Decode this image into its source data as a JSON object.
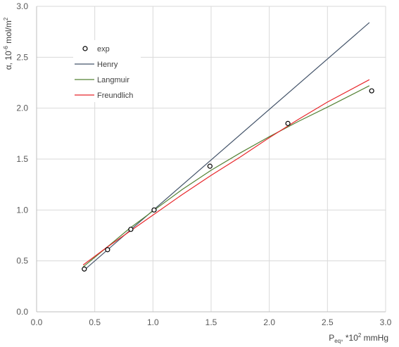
{
  "chart_data": {
    "type": "scatter",
    "xlim": [
      0.0,
      3.0
    ],
    "ylim": [
      0.0,
      3.0
    ],
    "x_ticks": [
      "0.0",
      "0.5",
      "1.0",
      "1.5",
      "2.0",
      "2.5",
      "3.0"
    ],
    "y_ticks": [
      "0.0",
      "0.5",
      "1.0",
      "1.5",
      "2.0",
      "2.5",
      "3.0"
    ],
    "x_tick_values": [
      0.0,
      0.5,
      1.0,
      1.5,
      2.0,
      2.5,
      3.0
    ],
    "y_tick_values": [
      0.0,
      0.5,
      1.0,
      1.5,
      2.0,
      2.5,
      3.0
    ],
    "xlabel": {
      "main": "P",
      "sub": "eq",
      "rest": ", *10",
      "sup": "2",
      "unit": " mmHg"
    },
    "ylabel": {
      "main": "α, 10",
      "sup": "-6",
      "mid": " mol/m",
      "sup2": "2"
    },
    "grid": true,
    "legend_position": "top-left",
    "series": [
      {
        "name": "exp",
        "kind": "markers",
        "color": "#000000",
        "x": [
          0.41,
          0.61,
          0.81,
          1.01,
          1.49,
          2.16,
          2.88
        ],
        "y": [
          0.42,
          0.61,
          0.81,
          1.0,
          1.43,
          1.85,
          2.17
        ]
      },
      {
        "name": "Henry",
        "kind": "line",
        "color": "#44546a",
        "x": [
          0.4,
          2.86
        ],
        "y": [
          0.4,
          2.84
        ]
      },
      {
        "name": "Langmuir",
        "kind": "line",
        "color": "#548235",
        "x": [
          0.4,
          0.6,
          0.8,
          1.0,
          1.25,
          1.5,
          1.75,
          2.0,
          2.25,
          2.5,
          2.86
        ],
        "y": [
          0.44,
          0.63,
          0.82,
          0.99,
          1.2,
          1.39,
          1.56,
          1.72,
          1.87,
          2.01,
          2.22
        ]
      },
      {
        "name": "Freundlich",
        "kind": "line",
        "color": "#e8262a",
        "x": [
          0.4,
          0.6,
          0.8,
          1.0,
          1.25,
          1.5,
          1.75,
          2.0,
          2.25,
          2.5,
          2.86
        ],
        "y": [
          0.46,
          0.63,
          0.79,
          0.95,
          1.15,
          1.34,
          1.52,
          1.71,
          1.89,
          2.06,
          2.28
        ]
      }
    ]
  }
}
